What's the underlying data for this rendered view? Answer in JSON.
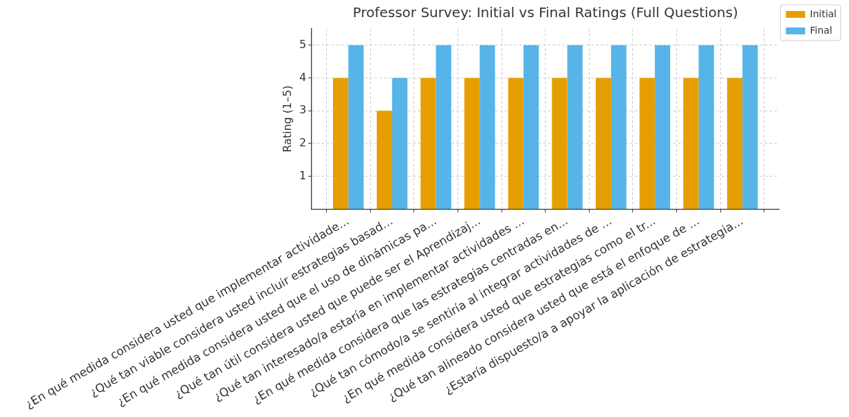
{
  "chart_data": {
    "type": "bar",
    "title": "Professor Survey: Initial vs Final Ratings (Full Questions)",
    "ylabel": "Rating (1–5)",
    "categories": [
      "¿En qué medida considera usted que implementar actividade...",
      "¿Qué tan viable considera usted incluir estrategias basad...",
      "¿En qué medida considera usted que el uso de dinámicas pa...",
      "¿Qué tan útil considera usted que puede ser el Aprendizaj...",
      "¿Qué tan interesado/a estaría en implementar actividades ...",
      "¿En qué medida considera que las estrategias centradas en...",
      "¿Qué tan cómodo/a se sentiría al integrar actividades de ...",
      "¿En qué medida considera usted que estrategias como el tr...",
      "¿Qué tan alineado considera usted que está el enfoque de ...",
      "¿Estaría dispuesto/a a apoyar la aplicación de estrategia..."
    ],
    "series": [
      {
        "name": "Initial",
        "color": "#e69f00",
        "values": [
          4,
          3,
          4,
          4,
          4,
          4,
          4,
          4,
          4,
          4
        ]
      },
      {
        "name": "Final",
        "color": "#56b4e9",
        "values": [
          5,
          4,
          5,
          5,
          5,
          5,
          5,
          5,
          5,
          5
        ]
      }
    ],
    "ylim": [
      0,
      5.5
    ],
    "yticks": [
      1,
      2,
      3,
      4,
      5
    ],
    "grid": true,
    "legend": "top right"
  }
}
